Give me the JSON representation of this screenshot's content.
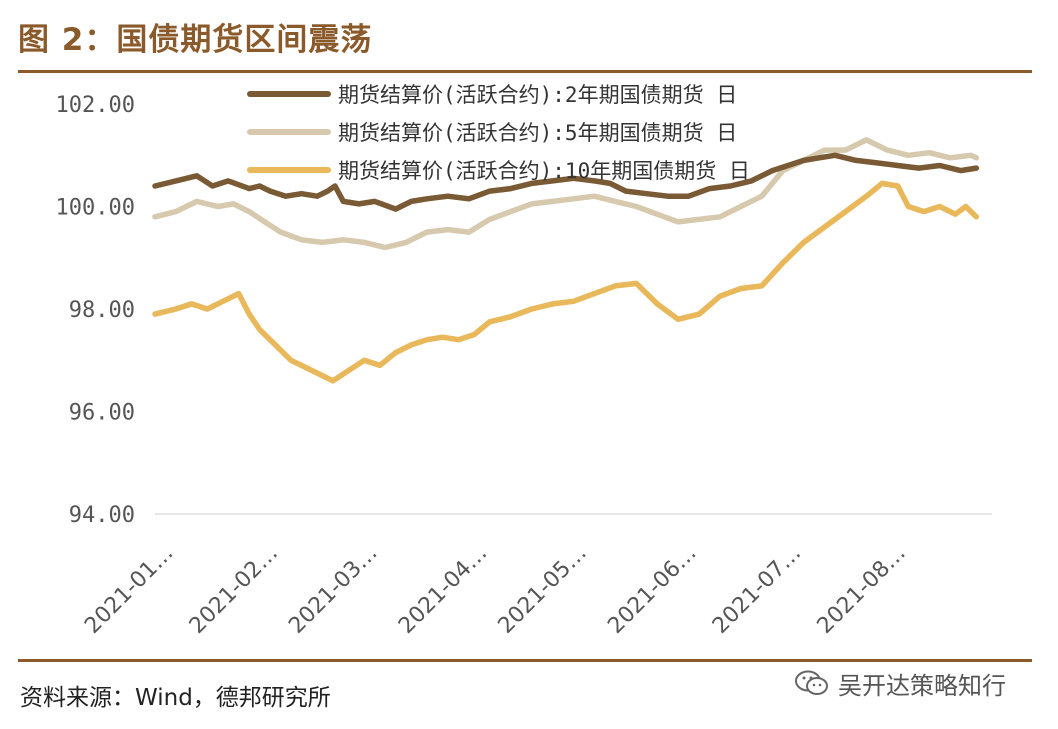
{
  "figure": {
    "title": "图 2：国债期货区间震荡",
    "source": "资料来源：Wind，德邦研究所",
    "watermark": "吴开达策略知行"
  },
  "colors": {
    "accent": "#8b5a2b",
    "series_2y": "#7a5a35",
    "series_5y": "#d6c9ae",
    "series_10y": "#e8b85a",
    "grid": "#dddddd"
  },
  "chart_data": {
    "type": "line",
    "title": "图 2：国债期货区间震荡",
    "xlabel": "",
    "ylabel": "",
    "ylim": [
      94,
      102
    ],
    "yticks": [
      "94.00",
      "96.00",
      "98.00",
      "100.00",
      "102.00"
    ],
    "yticks_values": [
      94,
      96,
      98,
      100,
      102
    ],
    "xlim": [
      0,
      8
    ],
    "x_tick_labels": [
      "2021-01…",
      "2021-02…",
      "2021-03…",
      "2021-04…",
      "2021-05…",
      "2021-06…",
      "2021-07…",
      "2021-08…"
    ],
    "x_tick_values": [
      0.05,
      1.05,
      2.0,
      3.05,
      4.0,
      5.05,
      6.05,
      7.05
    ],
    "grid": false,
    "legend_position": "top",
    "series": [
      {
        "name": "期货结算价(活跃合约):2年期国债期货  日",
        "color": "#7a5a35",
        "x": [
          0,
          0.2,
          0.4,
          0.55,
          0.7,
          0.9,
          1.0,
          1.1,
          1.25,
          1.4,
          1.55,
          1.65,
          1.72,
          1.8,
          1.95,
          2.1,
          2.3,
          2.45,
          2.6,
          2.8,
          3.0,
          3.2,
          3.4,
          3.6,
          3.8,
          4.0,
          4.2,
          4.35,
          4.5,
          4.7,
          4.9,
          5.1,
          5.3,
          5.5,
          5.7,
          5.9,
          6.05,
          6.2,
          6.35,
          6.5,
          6.7,
          6.9,
          7.1,
          7.3,
          7.5,
          7.7,
          7.85
        ],
        "values": [
          100.4,
          100.5,
          100.6,
          100.4,
          100.5,
          100.35,
          100.4,
          100.3,
          100.2,
          100.25,
          100.2,
          100.3,
          100.4,
          100.1,
          100.05,
          100.1,
          99.95,
          100.1,
          100.15,
          100.2,
          100.15,
          100.3,
          100.35,
          100.45,
          100.5,
          100.55,
          100.5,
          100.45,
          100.3,
          100.25,
          100.2,
          100.2,
          100.35,
          100.4,
          100.5,
          100.7,
          100.8,
          100.9,
          100.95,
          101.0,
          100.9,
          100.85,
          100.8,
          100.75,
          100.8,
          100.7,
          100.75
        ]
      },
      {
        "name": "期货结算价(活跃合约):5年期国债期货  日",
        "color": "#d6c9ae",
        "x": [
          0,
          0.2,
          0.4,
          0.6,
          0.75,
          0.9,
          1.05,
          1.2,
          1.4,
          1.6,
          1.8,
          2.0,
          2.2,
          2.4,
          2.6,
          2.8,
          3.0,
          3.2,
          3.4,
          3.6,
          3.8,
          4.0,
          4.2,
          4.4,
          4.6,
          4.8,
          5.0,
          5.2,
          5.4,
          5.6,
          5.8,
          6.0,
          6.2,
          6.4,
          6.6,
          6.8,
          7.0,
          7.2,
          7.4,
          7.6,
          7.8,
          7.85
        ],
        "values": [
          99.8,
          99.9,
          100.1,
          100.0,
          100.05,
          99.9,
          99.7,
          99.5,
          99.35,
          99.3,
          99.35,
          99.3,
          99.2,
          99.3,
          99.5,
          99.55,
          99.5,
          99.75,
          99.9,
          100.05,
          100.1,
          100.15,
          100.2,
          100.1,
          100.0,
          99.85,
          99.7,
          99.75,
          99.8,
          100.0,
          100.2,
          100.7,
          100.9,
          101.1,
          101.1,
          101.3,
          101.1,
          101.0,
          101.05,
          100.95,
          101.0,
          100.95
        ]
      },
      {
        "name": "期货结算价(活跃合约):10年期国债期货  日",
        "color": "#e8b85a",
        "x": [
          0,
          0.2,
          0.35,
          0.5,
          0.65,
          0.8,
          0.9,
          1.0,
          1.15,
          1.3,
          1.5,
          1.7,
          1.85,
          2.0,
          2.15,
          2.3,
          2.45,
          2.6,
          2.75,
          2.9,
          3.05,
          3.2,
          3.4,
          3.6,
          3.8,
          4.0,
          4.2,
          4.4,
          4.6,
          4.8,
          5.0,
          5.2,
          5.4,
          5.6,
          5.8,
          6.0,
          6.2,
          6.4,
          6.6,
          6.8,
          6.95,
          7.1,
          7.2,
          7.35,
          7.5,
          7.65,
          7.75,
          7.85
        ],
        "values": [
          97.9,
          98.0,
          98.1,
          98.0,
          98.15,
          98.3,
          97.9,
          97.6,
          97.3,
          97.0,
          96.8,
          96.6,
          96.8,
          97.0,
          96.9,
          97.15,
          97.3,
          97.4,
          97.45,
          97.4,
          97.5,
          97.75,
          97.85,
          98.0,
          98.1,
          98.15,
          98.3,
          98.45,
          98.5,
          98.1,
          97.8,
          97.9,
          98.25,
          98.4,
          98.45,
          98.9,
          99.3,
          99.6,
          99.9,
          100.2,
          100.45,
          100.4,
          100.0,
          99.9,
          100.0,
          99.85,
          100.0,
          99.8
        ]
      }
    ]
  }
}
